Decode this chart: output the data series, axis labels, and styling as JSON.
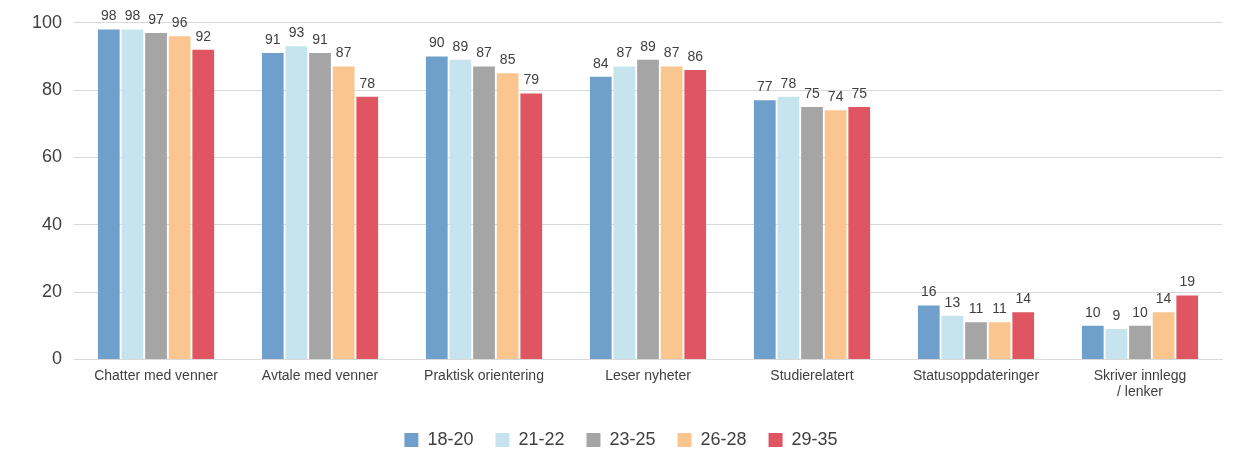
{
  "chart_data": {
    "type": "bar",
    "categories": [
      "Chatter med venner",
      "Avtale med venner",
      "Praktisk orientering",
      "Leser nyheter",
      "Studierelatert",
      "Statusoppdateringer",
      "Skriver innlegg / lenker"
    ],
    "series": [
      {
        "name": "18-20",
        "color": "#6f9fcb",
        "values": [
          98,
          91,
          90,
          84,
          77,
          16,
          10
        ]
      },
      {
        "name": "21-22",
        "color": "#c5e4ee",
        "values": [
          98,
          93,
          89,
          87,
          78,
          13,
          9
        ]
      },
      {
        "name": "23-25",
        "color": "#a5a5a5",
        "values": [
          97,
          91,
          87,
          89,
          75,
          11,
          10
        ]
      },
      {
        "name": "26-28",
        "color": "#fbc58f",
        "values": [
          96,
          87,
          85,
          87,
          74,
          11,
          14
        ]
      },
      {
        "name": "29-35",
        "color": "#e05562",
        "values": [
          92,
          78,
          79,
          86,
          75,
          14,
          19
        ]
      }
    ],
    "ylim": [
      0,
      100
    ],
    "yticks": [
      0,
      20,
      40,
      60,
      80,
      100
    ],
    "grid": "y",
    "legend": "bottom",
    "data_labels": true
  }
}
